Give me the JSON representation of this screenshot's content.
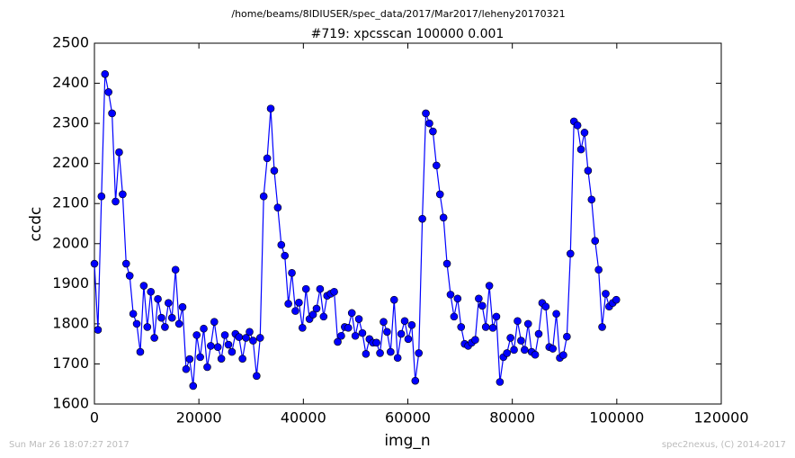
{
  "chart_data": {
    "type": "line",
    "suptitle": "/home/beams/8IDIUSER/spec_data/2017/Mar2017/leheny20170321",
    "title": "#719: xpcsscan 100000 0.001",
    "x_label": "img_n",
    "y_label": "ccdc",
    "footer_left": "Sun Mar 26 18:07:27 2017",
    "footer_right": "spec2nexus, (C) 2014-2017",
    "xlim": [
      0,
      120000
    ],
    "xticks": [
      0,
      20000,
      40000,
      60000,
      80000,
      100000,
      120000
    ],
    "ylim": [
      1600,
      2500
    ],
    "yticks": [
      1600,
      1700,
      1800,
      1900,
      2000,
      2100,
      2200,
      2300,
      2400,
      2500
    ],
    "x": [
      0,
      675,
      1350,
      2025,
      2700,
      3375,
      4050,
      4725,
      5400,
      6075,
      6750,
      7425,
      8100,
      8775,
      9450,
      10125,
      10800,
      11475,
      12150,
      12825,
      13500,
      14175,
      14850,
      15525,
      16200,
      16875,
      17550,
      18225,
      18900,
      19575,
      20250,
      20925,
      21600,
      22275,
      22950,
      23625,
      24300,
      24975,
      25650,
      26325,
      27000,
      27675,
      28350,
      29025,
      29700,
      30375,
      31050,
      31725,
      32400,
      33075,
      33750,
      34425,
      35100,
      35775,
      36450,
      37125,
      37800,
      38475,
      39150,
      39825,
      40500,
      41175,
      41850,
      42525,
      43200,
      43875,
      44550,
      45225,
      45900,
      46575,
      47250,
      47925,
      48600,
      49275,
      49950,
      50625,
      51300,
      51975,
      52650,
      53325,
      54000,
      54675,
      55350,
      56025,
      56700,
      57375,
      58050,
      58725,
      59400,
      60075,
      60750,
      61425,
      62100,
      62775,
      63450,
      64125,
      64800,
      65475,
      66150,
      66825,
      67500,
      68175,
      68850,
      69525,
      70200,
      70875,
      71550,
      72225,
      72900,
      73575,
      74250,
      74925,
      75600,
      76275,
      76950,
      77625,
      78300,
      78975,
      79650,
      80325,
      81000,
      81675,
      82350,
      83025,
      83700,
      84375,
      85050,
      85725,
      86400,
      87075,
      87750,
      88425,
      89100,
      89775,
      90450,
      91125,
      91800,
      92475,
      93150,
      93825,
      94500,
      95175,
      95850,
      96525,
      97200,
      97875,
      98550,
      99225,
      99900
    ],
    "series": [
      {
        "color": "#0000ff",
        "values": [
          1950,
          1785,
          2118,
          2423,
          2378,
          2325,
          2105,
          2228,
          2123,
          1950,
          1920,
          1825,
          1800,
          1730,
          1895,
          1792,
          1880,
          1765,
          1862,
          1815,
          1792,
          1852,
          1815,
          1935,
          1800,
          1842,
          1687,
          1712,
          1645,
          1772,
          1717,
          1788,
          1692,
          1745,
          1805,
          1742,
          1713,
          1772,
          1748,
          1730,
          1775,
          1767,
          1713,
          1765,
          1780,
          1758,
          1670,
          1765,
          2118,
          2213,
          2337,
          2182,
          2090,
          1997,
          1970,
          1850,
          1927,
          1832,
          1853,
          1790,
          1887,
          1812,
          1823,
          1838,
          1887,
          1818,
          1870,
          1875,
          1880,
          1755,
          1770,
          1792,
          1790,
          1827,
          1770,
          1812,
          1777,
          1725,
          1762,
          1753,
          1753,
          1727,
          1805,
          1780,
          1730,
          1860,
          1715,
          1775,
          1807,
          1762,
          1797,
          1658,
          1727,
          2062,
          2325,
          2300,
          2280,
          2195,
          2123,
          2065,
          1950,
          1873,
          1818,
          1863,
          1792,
          1750,
          1745,
          1753,
          1760,
          1863,
          1845,
          1792,
          1895,
          1790,
          1818,
          1655,
          1717,
          1727,
          1765,
          1735,
          1807,
          1758,
          1735,
          1800,
          1730,
          1723,
          1775,
          1852,
          1843,
          1742,
          1738,
          1825,
          1715,
          1722,
          1768,
          1975,
          2305,
          2295,
          2235,
          2277,
          2182,
          2110,
          2007,
          1935,
          1792,
          1875,
          1843,
          1852,
          1860
        ]
      }
    ]
  }
}
